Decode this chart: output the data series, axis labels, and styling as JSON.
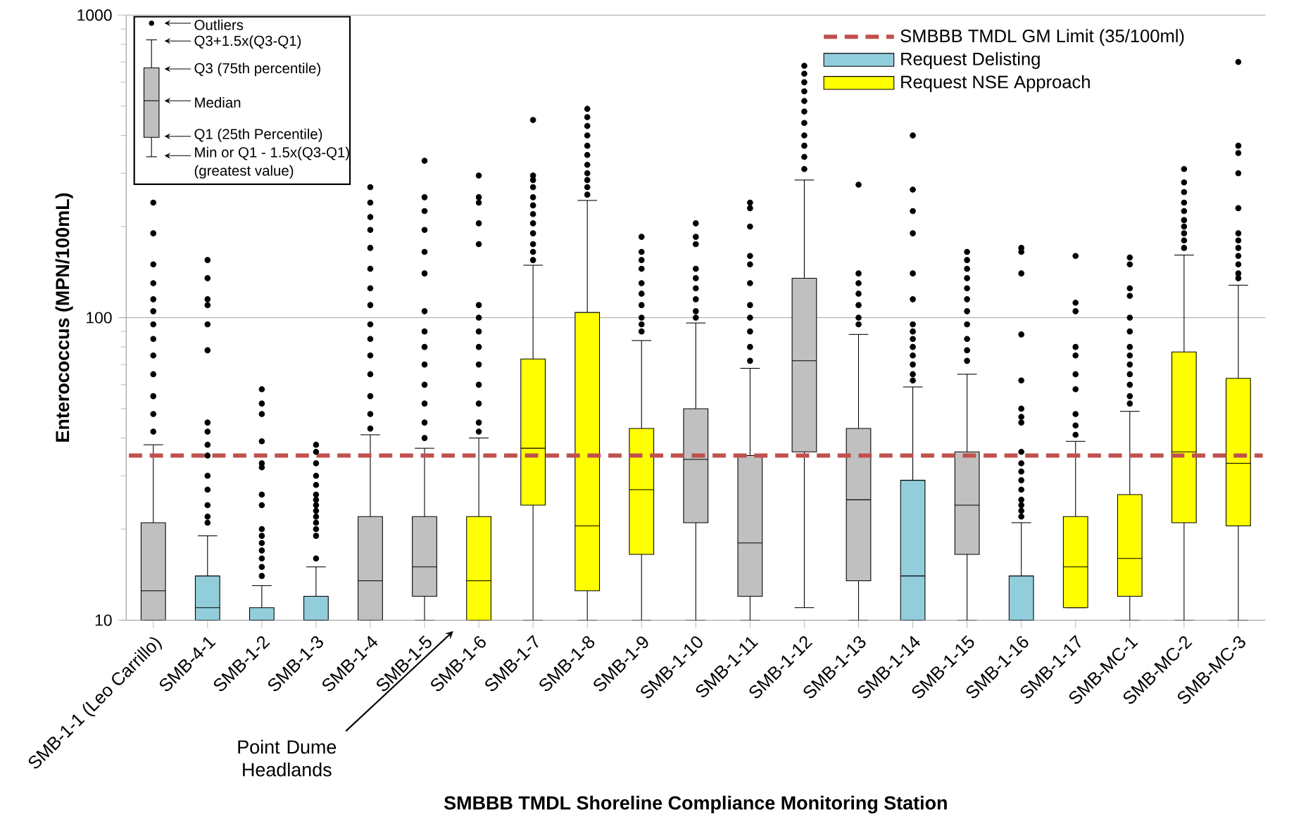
{
  "chart_data": {
    "type": "box",
    "xlabel": "SMBBB TMDL Shoreline Compliance  Monitoring Station",
    "ylabel": "Enterococcus (MPN/100mL)",
    "categories": [
      "SMB-1-1 (Leo Carrillo)",
      "SMB-4-1",
      "SMB-1-2",
      "SMB-1-3",
      "SMB-1-4",
      "SMB-1-5",
      "SMB-1-6",
      "SMB-1-7",
      "SMB-1-8",
      "SMB-1-9",
      "SMB-1-10",
      "SMB-1-11",
      "SMB-1-12",
      "SMB-1-13",
      "SMB-1-14",
      "SMB-1-15",
      "SMB-1-16",
      "SMB-1-17",
      "SMB-MC-1",
      "SMB-MC-2",
      "SMB-MC-3"
    ],
    "log": "y",
    "ylim": [
      10,
      1000
    ],
    "yticks": [
      10,
      100,
      1000
    ],
    "grid": "y",
    "legend": "top right",
    "ref_lines": [
      {
        "axis": "y",
        "value": 35,
        "label": "SMBBB TMDL GM Limit (35/100ml)",
        "color": "#c0504d",
        "line_style": "dashed"
      }
    ],
    "annotations": [
      "Outliers",
      "Q3+1.5x(Q3-Q1)",
      "Q3 (75th percentile)",
      "Median",
      "Q1 (25th Percentile)",
      "Min or Q1 - 1.5x(Q3-Q1)",
      "(greatest value)",
      "Point Dume Headlands"
    ],
    "series": [
      {
        "color": "#c0c0c0",
        "boxes": [
          {
            "low": 10,
            "q1": 10,
            "median": 12.5,
            "q3": 21,
            "high": 38,
            "outliers": [
              240,
              190,
              150,
              130,
              115,
              105,
              95,
              85,
              75,
              65,
              55,
              48,
              42
            ]
          },
          null,
          null,
          null,
          {
            "low": 10,
            "q1": 10,
            "median": 13.5,
            "q3": 22,
            "high": 41,
            "outliers": [
              270,
              240,
              215,
              195,
              170,
              145,
              125,
              110,
              95,
              85,
              75,
              65,
              55,
              48,
              43
            ]
          },
          {
            "low": 10,
            "q1": 12,
            "median": 15,
            "q3": 22,
            "high": 37,
            "outliers": [
              330,
              250,
              225,
              195,
              165,
              140,
              105,
              90,
              80,
              70,
              60,
              52,
              45,
              40
            ]
          },
          null,
          null,
          null,
          null,
          {
            "low": 10,
            "q1": 21,
            "median": 34,
            "q3": 50,
            "high": 96,
            "outliers": [
              205,
              185,
              175,
              145,
              135,
              125,
              115,
              105,
              100
            ]
          },
          {
            "low": 10,
            "q1": 12,
            "median": 18,
            "q3": 35,
            "high": 68,
            "outliers": [
              240,
              230,
              200,
              160,
              150,
              130,
              110,
              100,
              90,
              80,
              72
            ]
          },
          {
            "low": 11,
            "q1": 36,
            "median": 72,
            "q3": 135,
            "high": 285,
            "outliers": [
              680,
              640,
              600,
              560,
              520,
              480,
              440,
              400,
              370,
              340,
              310
            ]
          },
          {
            "low": 10,
            "q1": 13.5,
            "median": 25,
            "q3": 43,
            "high": 88,
            "outliers": [
              275,
              140,
              130,
              120,
              110,
              100,
              95
            ]
          },
          null,
          {
            "low": 10,
            "q1": 16.5,
            "median": 24,
            "q3": 36,
            "high": 65,
            "outliers": [
              165,
              155,
              145,
              135,
              125,
              115,
              105,
              95,
              85,
              78,
              72
            ]
          },
          null,
          null,
          null,
          null,
          null
        ]
      },
      {
        "name": "Request Delisting",
        "color": "#92cddc",
        "boxes": [
          null,
          {
            "low": 10,
            "q1": 10,
            "median": 11,
            "q3": 14,
            "high": 19,
            "outliers": [
              155,
              135,
              115,
              110,
              95,
              78,
              45,
              42,
              38,
              35,
              30,
              27,
              24,
              22,
              21
            ]
          },
          {
            "low": 10,
            "q1": 10,
            "median": 10,
            "q3": 11,
            "high": 13,
            "outliers": [
              58,
              52,
              48,
              39,
              33,
              32,
              26,
              24,
              20,
              19,
              18,
              17,
              16,
              15,
              14
            ]
          },
          {
            "low": 10,
            "q1": 10,
            "median": 10,
            "q3": 12,
            "high": 15,
            "outliers": [
              38,
              36,
              33,
              30,
              28,
              26,
              25,
              24,
              23,
              22,
              21,
              20,
              19,
              16
            ]
          },
          null,
          null,
          null,
          null,
          null,
          null,
          null,
          null,
          null,
          null,
          {
            "low": 10,
            "q1": 10,
            "median": 14,
            "q3": 29,
            "high": 59,
            "outliers": [
              400,
              265,
              225,
              190,
              140,
              115,
              95,
              90,
              85,
              80,
              75,
              70,
              65,
              62
            ]
          },
          null,
          {
            "low": 10,
            "q1": 10,
            "median": 10,
            "q3": 14,
            "high": 21,
            "outliers": [
              170,
              165,
              140,
              88,
              62,
              50,
              47,
              45,
              36,
              33,
              31,
              29,
              27,
              25,
              24,
              23,
              22
            ]
          },
          null,
          null,
          null,
          null
        ]
      },
      {
        "name": "Request NSE Approach",
        "color": "#ffff00",
        "boxes": [
          null,
          null,
          null,
          null,
          null,
          null,
          {
            "low": 10,
            "q1": 10,
            "median": 13.5,
            "q3": 22,
            "high": 40,
            "outliers": [
              295,
              250,
              240,
              205,
              175,
              110,
              100,
              90,
              80,
              70,
              60,
              52,
              45,
              42
            ]
          },
          {
            "low": 10,
            "q1": 24,
            "median": 37,
            "q3": 73,
            "high": 149,
            "outliers": [
              450,
              295,
              285,
              270,
              250,
              235,
              220,
              205,
              190,
              175,
              165,
              155
            ]
          },
          {
            "low": 10,
            "q1": 12.5,
            "median": 20.5,
            "q3": 104,
            "high": 244,
            "outliers": [
              490,
              460,
              430,
              400,
              370,
              345,
              320,
              300,
              285,
              270,
              255
            ]
          },
          {
            "low": 10,
            "q1": 16.5,
            "median": 27,
            "q3": 43,
            "high": 84,
            "outliers": [
              185,
              165,
              155,
              145,
              130,
              120,
              110,
              100,
              95,
              90
            ]
          },
          null,
          null,
          null,
          null,
          null,
          null,
          null,
          {
            "low": 11,
            "q1": 11,
            "median": 15,
            "q3": 22,
            "high": 39,
            "outliers": [
              160,
              112,
              105,
              80,
              75,
              65,
              58,
              48,
              44,
              41
            ]
          },
          {
            "low": 10,
            "q1": 12,
            "median": 16,
            "q3": 26,
            "high": 49,
            "outliers": [
              158,
              150,
              125,
              118,
              100,
              90,
              80,
              75,
              70,
              65,
              60,
              55,
              52
            ]
          },
          {
            "low": 10,
            "q1": 21,
            "median": 36,
            "q3": 77,
            "high": 161,
            "outliers": [
              310,
              280,
              260,
              240,
              225,
              210,
              200,
              190,
              180,
              170
            ]
          },
          {
            "low": 10,
            "q1": 20.5,
            "median": 33,
            "q3": 63,
            "high": 128,
            "outliers": [
              700,
              370,
              350,
              300,
              230,
              190,
              180,
              170,
              160,
              150,
              140,
              135
            ]
          }
        ]
      }
    ]
  }
}
